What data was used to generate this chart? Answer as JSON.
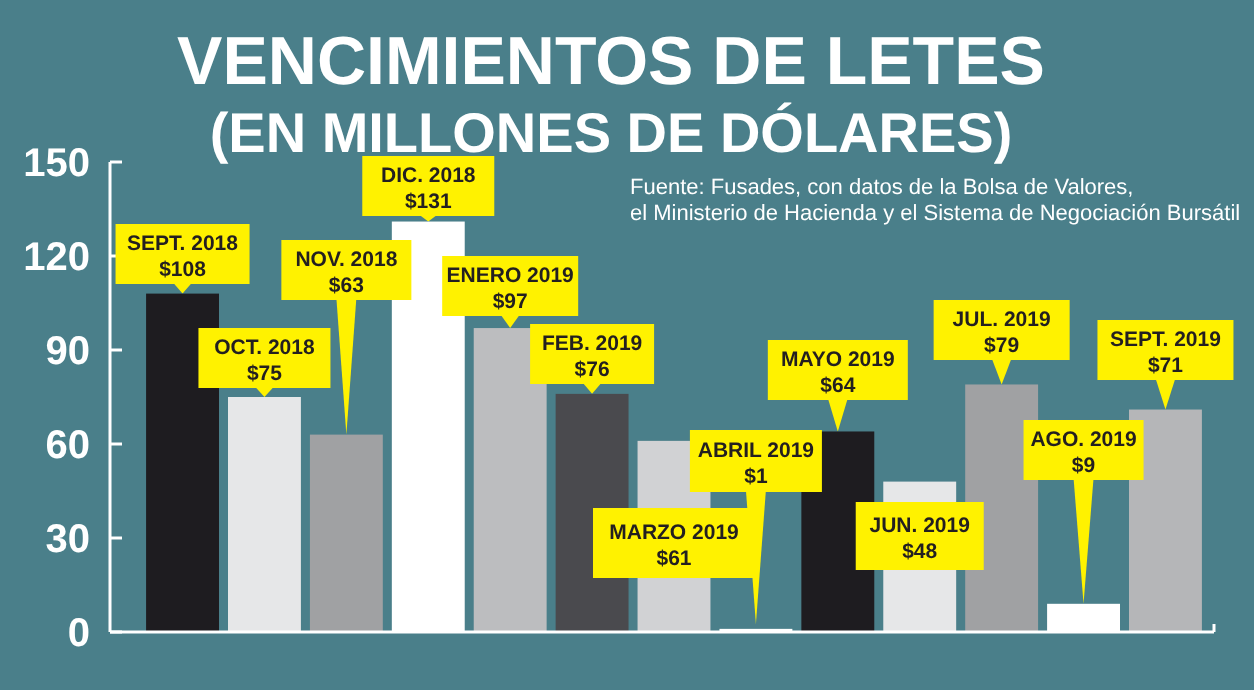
{
  "chart_data": {
    "type": "bar",
    "title": "VENCIMIENTOS DE LETES",
    "subtitle": "(EN MILLONES DE DÓLARES)",
    "annotations": [
      "Fuente: Fusades, con datos de la Bolsa de Valores, el Ministerio de Hacienda y el Sistema de Negociación Bursátil"
    ],
    "categories": [
      "SEPT. 2018",
      "OCT. 2018",
      "NOV. 2018",
      "DIC. 2018",
      "ENERO 2019",
      "FEB. 2019",
      "MARZO 2019",
      "ABRIL 2019",
      "MAYO 2019",
      "JUN. 2019",
      "JUL. 2019",
      "AGO. 2019",
      "SEPT. 2019"
    ],
    "values": [
      108,
      75,
      63,
      131,
      97,
      76,
      61,
      1,
      64,
      48,
      79,
      9,
      71
    ],
    "value_labels": [
      "$108",
      "$75",
      "$63",
      "$131",
      "$97",
      "$76",
      "$61",
      "$1",
      "$64",
      "$48",
      "$79",
      "$9",
      "$71"
    ],
    "colors": [
      "#1e1c20",
      "#e6e7e8",
      "#a0a1a3",
      "#ffffff",
      "#bcbdbf",
      "#4a4a4e",
      "#d1d2d4",
      "#ffffff",
      "#1e1c20",
      "#e6e7e8",
      "#a0a1a3",
      "#ffffff",
      "#b5b6b8"
    ],
    "ylim": [
      0,
      150
    ],
    "yticks": [
      0,
      30,
      60,
      90,
      120,
      150
    ],
    "grid": false
  }
}
